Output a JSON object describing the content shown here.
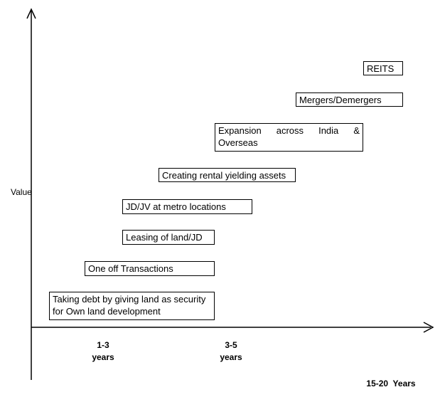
{
  "axes": {
    "y_label": "Value"
  },
  "ticks": [
    {
      "line1": "1-3",
      "line2": "years"
    },
    {
      "line1": "3-5",
      "line2": "years"
    },
    {
      "line1": "15-20  Years",
      "line2": ""
    }
  ],
  "items": [
    {
      "text": "REITS"
    },
    {
      "text": "Mergers/Demergers"
    },
    {
      "text": "Expansion across India & Overseas"
    },
    {
      "text": "Creating rental yielding assets"
    },
    {
      "text": "JD/JV at metro locations"
    },
    {
      "text": "Leasing of land/JD"
    },
    {
      "text": "One off Transactions"
    },
    {
      "text": "Taking debt by giving land as security for Own land development"
    }
  ]
}
